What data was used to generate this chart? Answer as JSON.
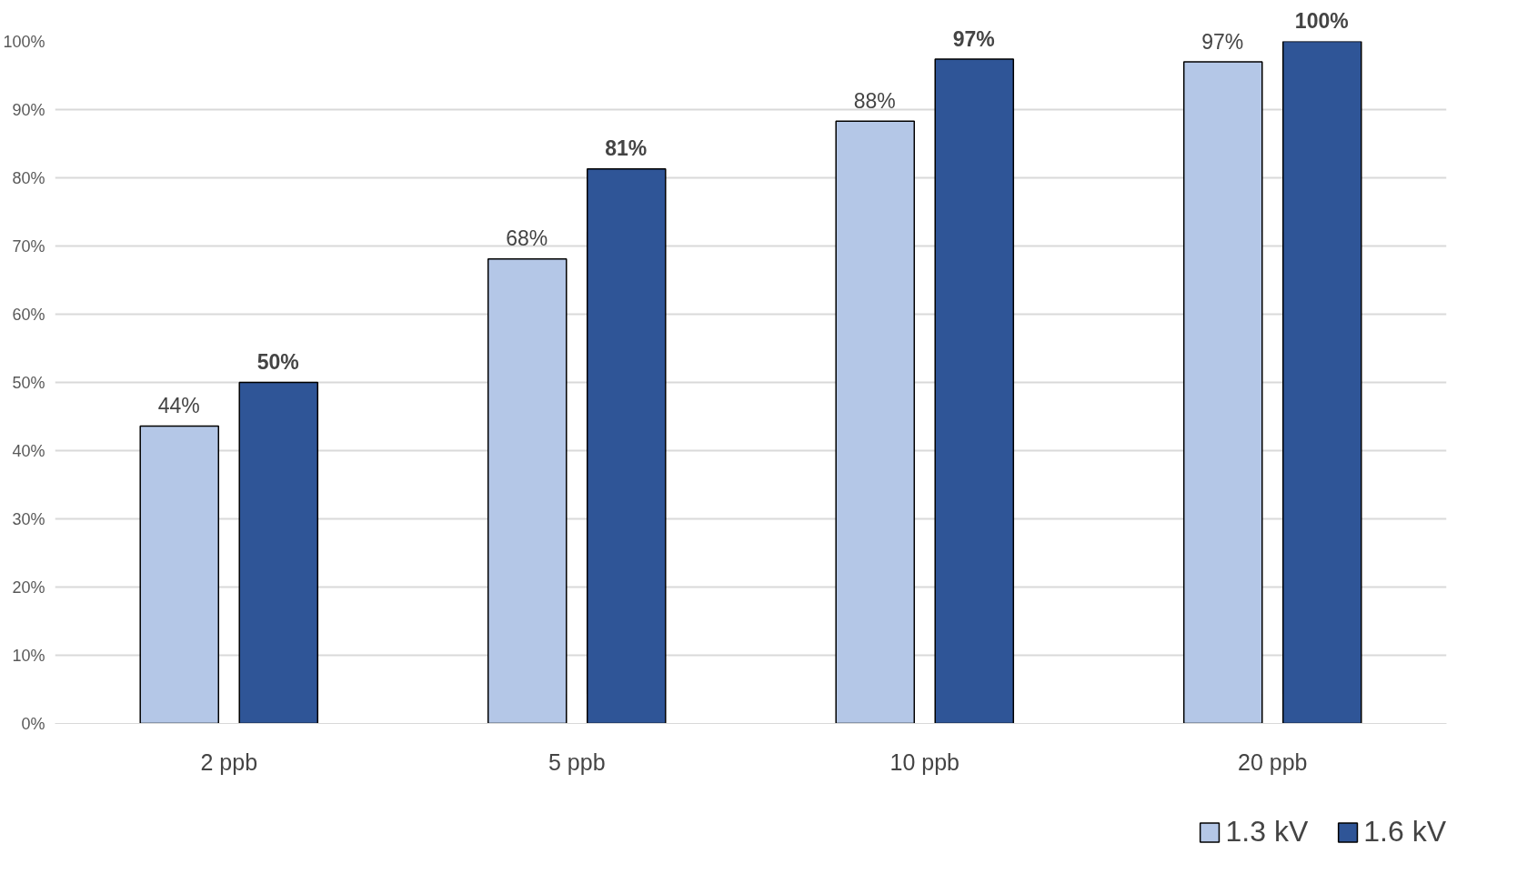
{
  "chart_data": {
    "type": "bar",
    "categories": [
      "2 ppb",
      "5 ppb",
      "10 ppb",
      "20 ppb"
    ],
    "series": [
      {
        "name": "1.3 kV",
        "color": "#b4c7e7",
        "values": [
          43.6,
          68.1,
          88.3,
          97.0
        ],
        "value_labels": [
          "44%",
          "68%",
          "88%",
          "97%"
        ]
      },
      {
        "name": "1.6 kV",
        "color": "#2f5597",
        "values": [
          50.0,
          81.3,
          97.4,
          100.0
        ],
        "value_labels": [
          "50%",
          "81%",
          "97%",
          "100%"
        ]
      }
    ],
    "ylim": [
      0,
      100
    ],
    "yticks": [
      {
        "value": 0,
        "label": "0%"
      },
      {
        "value": 10,
        "label": "10%"
      },
      {
        "value": 20,
        "label": "20%"
      },
      {
        "value": 30,
        "label": "30%"
      },
      {
        "value": 40,
        "label": "40%"
      },
      {
        "value": 50,
        "label": "50%"
      },
      {
        "value": 60,
        "label": "60%"
      },
      {
        "value": 70,
        "label": "70%"
      },
      {
        "value": 80,
        "label": "80%"
      },
      {
        "value": 90,
        "label": "90%"
      },
      {
        "value": 100,
        "label": "100%"
      }
    ],
    "grid": "y",
    "legend": "bottom"
  }
}
